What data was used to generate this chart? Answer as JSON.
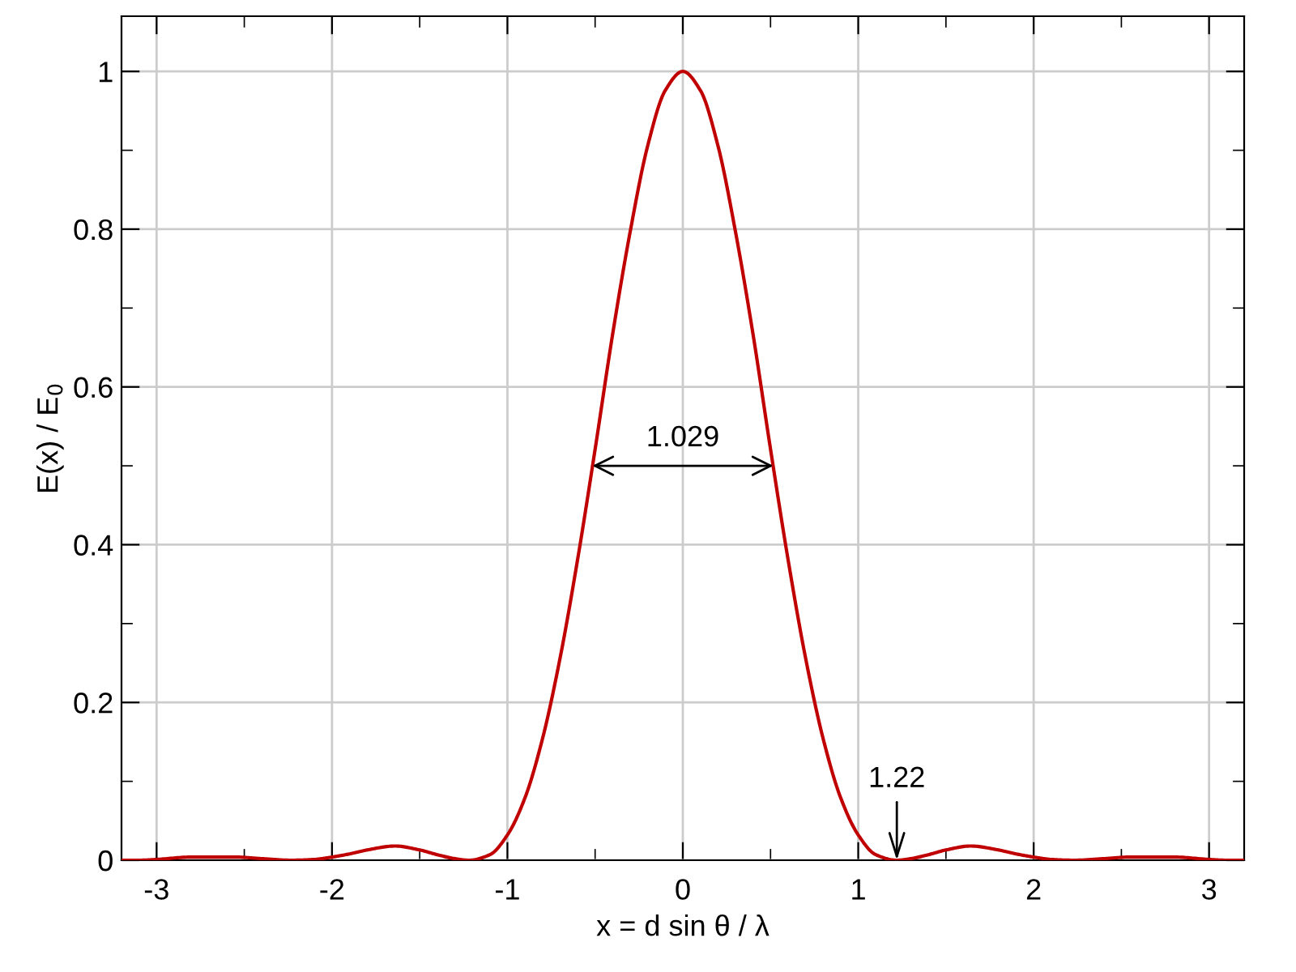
{
  "chart_data": {
    "type": "line",
    "xlabel": "x = d sin θ / λ",
    "ylabel": "E(x) / E$_{0}$",
    "series": [
      {
        "color": "#c00000",
        "x": [
          -3.2,
          -3.1,
          -3.0,
          -2.8,
          -2.68,
          -2.55,
          -2.4,
          -2.23,
          -2.1,
          -2.0,
          -1.9,
          -1.8,
          -1.64,
          -1.5,
          -1.4,
          -1.3,
          -1.22,
          -1.1,
          -1.0,
          -0.9,
          -0.8,
          -0.7,
          -0.6,
          -0.5,
          -0.4,
          -0.3,
          -0.2,
          -0.1,
          0,
          0.1,
          0.2,
          0.3,
          0.4,
          0.5,
          0.6,
          0.7,
          0.8,
          0.9,
          1.0,
          1.1,
          1.22,
          1.3,
          1.4,
          1.5,
          1.64,
          1.8,
          1.9,
          2.0,
          2.1,
          2.23,
          2.4,
          2.55,
          2.68,
          2.8,
          3.0,
          3.1,
          3.2
        ],
        "values": [
          0,
          0,
          0.001,
          0.004,
          0.004,
          0.004,
          0.002,
          0,
          0.001,
          0.004,
          0.008,
          0.013,
          0.018,
          0.013,
          0.007,
          0.002,
          0,
          0.007,
          0.032,
          0.079,
          0.154,
          0.256,
          0.381,
          0.521,
          0.667,
          0.797,
          0.906,
          0.976,
          1,
          0.976,
          0.906,
          0.797,
          0.667,
          0.521,
          0.381,
          0.256,
          0.154,
          0.079,
          0.032,
          0.007,
          0,
          0.002,
          0.007,
          0.013,
          0.018,
          0.013,
          0.008,
          0.004,
          0.001,
          0,
          0.002,
          0.004,
          0.004,
          0.004,
          0.001,
          0,
          0
        ]
      }
    ],
    "xlim": [
      -3.2,
      3.2
    ],
    "ylim": [
      0,
      1.07
    ],
    "xticks": [
      -3,
      {
        "value": -2.5,
        "label": null
      },
      -2,
      {
        "value": -1.5,
        "label": null
      },
      -1,
      {
        "value": -0.5,
        "label": null
      },
      0,
      {
        "value": 0.5,
        "label": null
      },
      1,
      {
        "value": 1.5,
        "label": null
      },
      2,
      {
        "value": 2.5,
        "label": null
      },
      3
    ],
    "yticks": [
      0,
      {
        "value": 0.1,
        "label": null
      },
      0.2,
      {
        "value": 0.3,
        "label": null
      },
      0.4,
      {
        "value": 0.5,
        "label": null
      },
      0.6,
      {
        "value": 0.7,
        "label": null
      },
      0.8,
      {
        "value": 0.9,
        "label": null
      },
      1
    ],
    "grid": true,
    "marker": "none",
    "line_style": "solid",
    "annotations": [
      "1.029",
      {
        "text": "1.22",
        "x": 1.22,
        "y": 0
      }
    ]
  }
}
